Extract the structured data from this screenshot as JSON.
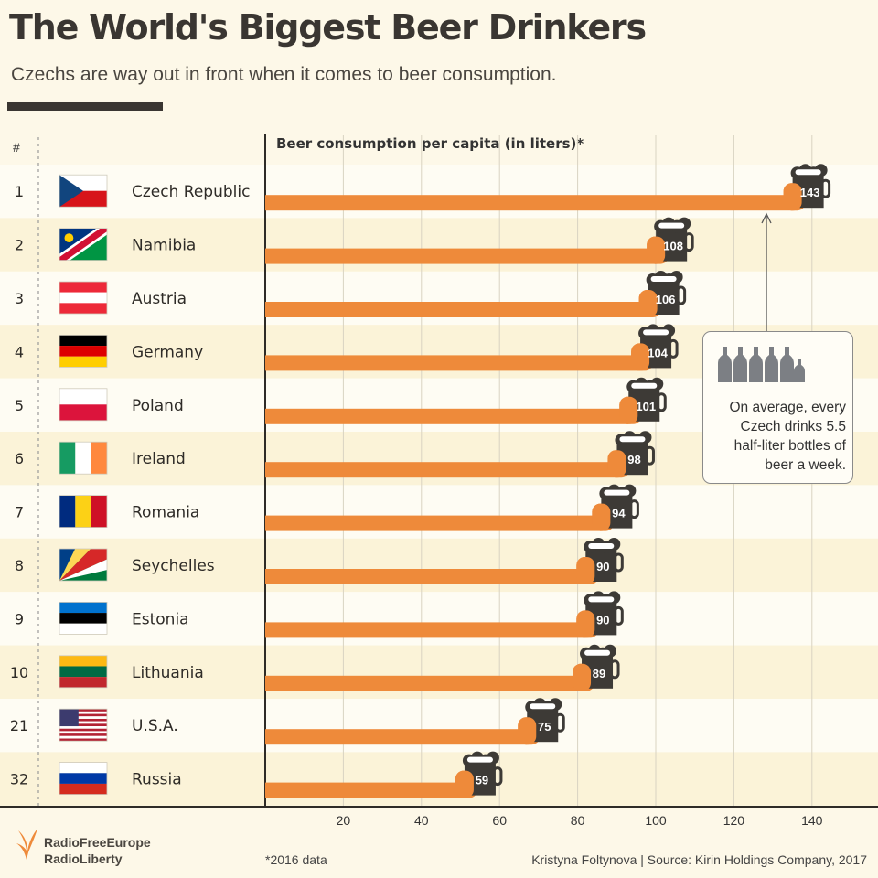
{
  "title": "The World's Biggest Beer Drinkers",
  "subtitle": "Czechs are way out in front when it comes to beer consumption.",
  "rank_header": "#",
  "colors": {
    "bar": "#ee8a3a",
    "mug": "#3d3a36",
    "band_light": "#fefcf3",
    "band_dark": "#fbf3d8",
    "background": "#fdf8e8"
  },
  "chart_data": {
    "type": "bar",
    "orientation": "horizontal",
    "title": "Beer consumption per capita (in liters)*",
    "rows": [
      {
        "rank": "1",
        "country": "Czech Republic",
        "flag": "czech-flag",
        "value": 143
      },
      {
        "rank": "2",
        "country": "Namibia",
        "flag": "namibia-flag",
        "value": 108
      },
      {
        "rank": "3",
        "country": "Austria",
        "flag": "austria-flag",
        "value": 106
      },
      {
        "rank": "4",
        "country": "Germany",
        "flag": "germany-flag",
        "value": 104
      },
      {
        "rank": "5",
        "country": "Poland",
        "flag": "poland-flag",
        "value": 101
      },
      {
        "rank": "6",
        "country": "Ireland",
        "flag": "ireland-flag",
        "value": 98
      },
      {
        "rank": "7",
        "country": "Romania",
        "flag": "romania-flag",
        "value": 94
      },
      {
        "rank": "8",
        "country": "Seychelles",
        "flag": "seychelles-flag",
        "value": 90
      },
      {
        "rank": "9",
        "country": "Estonia",
        "flag": "estonia-flag",
        "value": 90
      },
      {
        "rank": "10",
        "country": "Lithuania",
        "flag": "lithuania-flag",
        "value": 89
      },
      {
        "rank": "21",
        "country": "U.S.A.",
        "flag": "usa-flag",
        "value": 75
      },
      {
        "rank": "32",
        "country": "Russia",
        "flag": "russia-flag",
        "value": 59
      }
    ],
    "xaxis": {
      "ticks": [
        20,
        40,
        60,
        80,
        100,
        120,
        140
      ],
      "range": [
        0,
        150
      ],
      "grid": true
    },
    "annotation": {
      "text": "On average, every Czech drinks 5.5 half-liter bottles of beer a week.",
      "icon": "beer-bottles-icon",
      "points_to": "Czech Republic"
    }
  },
  "footnote": "*2016 data",
  "source": "Kristyna Foltynova | Source: Kirin Holdings Company, 2017",
  "logo": {
    "line1": "RadioFreeEurope",
    "line2": "RadioLiberty"
  }
}
